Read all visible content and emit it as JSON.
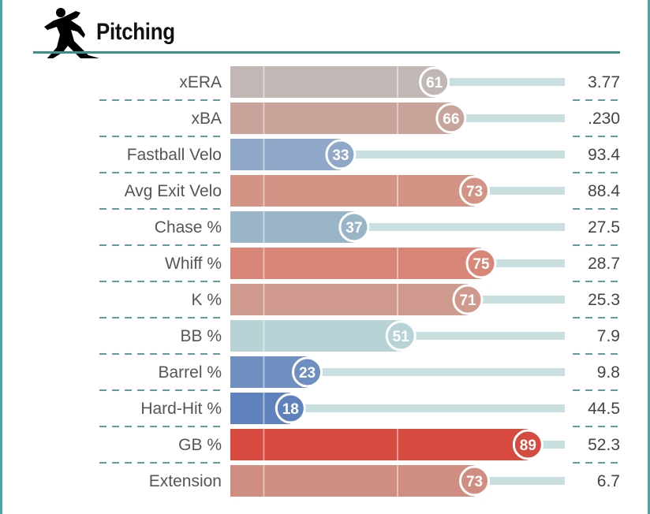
{
  "section": {
    "title": "Pitching",
    "icon": "pitcher-icon"
  },
  "colors": {
    "accent": "#3d8f8f",
    "track": "#c8dfdf",
    "separator": "#2f7f7f"
  },
  "chart_data": {
    "type": "bar",
    "title": "Pitching",
    "xlim": [
      0,
      100
    ],
    "metrics": [
      {
        "label": "xERA",
        "percentile": 61,
        "value": "3.77",
        "color": "#c1b8b5"
      },
      {
        "label": "xBA",
        "percentile": 66,
        "value": ".230",
        "color": "#c9a49a"
      },
      {
        "label": "Fastball Velo",
        "percentile": 33,
        "value": "93.4",
        "color": "#8fa8c9"
      },
      {
        "label": "Avg Exit Velo",
        "percentile": 73,
        "value": "88.4",
        "color": "#d39486"
      },
      {
        "label": "Chase %",
        "percentile": 37,
        "value": "27.5",
        "color": "#9ab4c8"
      },
      {
        "label": "Whiff %",
        "percentile": 75,
        "value": "28.7",
        "color": "#d88677"
      },
      {
        "label": "K %",
        "percentile": 71,
        "value": "25.3",
        "color": "#cf9a8d"
      },
      {
        "label": "BB %",
        "percentile": 51,
        "value": "7.9",
        "color": "#b8d3d6"
      },
      {
        "label": "Barrel %",
        "percentile": 23,
        "value": "9.8",
        "color": "#6f8fc2"
      },
      {
        "label": "Hard-Hit %",
        "percentile": 18,
        "value": "44.5",
        "color": "#5f82bd"
      },
      {
        "label": "GB %",
        "percentile": 89,
        "value": "52.3",
        "color": "#d74a40"
      },
      {
        "label": "Extension",
        "percentile": 73,
        "value": "6.7",
        "color": "#d08d81"
      }
    ]
  }
}
